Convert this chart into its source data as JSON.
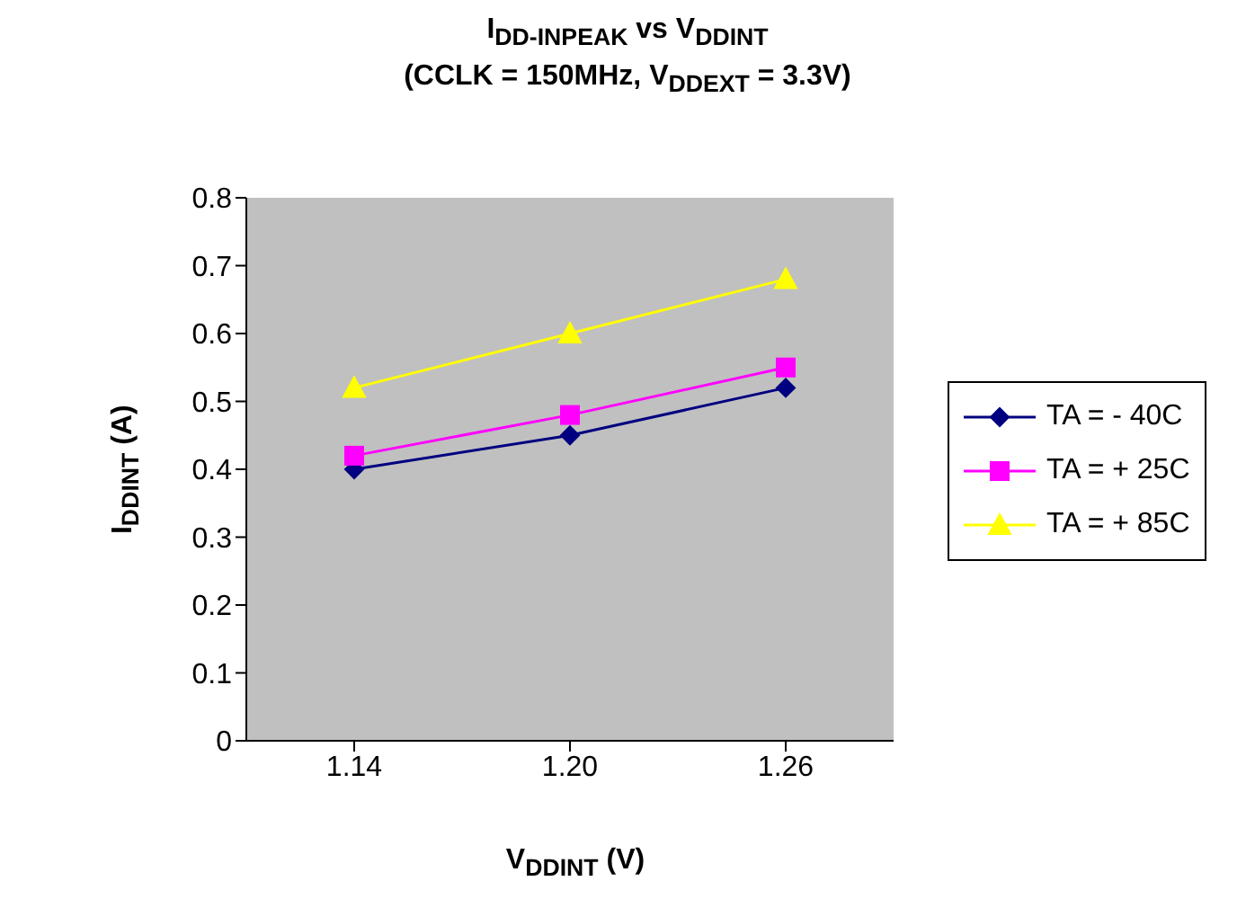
{
  "chart_data": {
    "type": "line",
    "title": "I$_{DD-INPEAK}$ vs V$_{DDINT}$",
    "subtitle": "(CCLK = 150MHz, V$_{DDEXT}$ = 3.3V)",
    "xlabel": "V$_{DDINT}$ (V)",
    "ylabel": "I$_{DDINT}$ (A)",
    "categories": [
      "1.14",
      "1.20",
      "1.26"
    ],
    "series": [
      {
        "name": "TA = - 40C",
        "color": "#000080",
        "marker": "diamond",
        "values": [
          0.4,
          0.45,
          0.52
        ]
      },
      {
        "name": "TA = + 25C",
        "color": "#ff00ff",
        "marker": "square",
        "values": [
          0.42,
          0.48,
          0.55
        ]
      },
      {
        "name": "TA = + 85C",
        "color": "#ffff00",
        "marker": "triangle",
        "values": [
          0.52,
          0.6,
          0.68
        ]
      }
    ],
    "ylim": [
      0,
      0.8
    ],
    "yticks": [
      0,
      0.1,
      0.2,
      0.3,
      0.4,
      0.5,
      0.6,
      0.7,
      0.8
    ],
    "grid": false,
    "legend": "right"
  }
}
